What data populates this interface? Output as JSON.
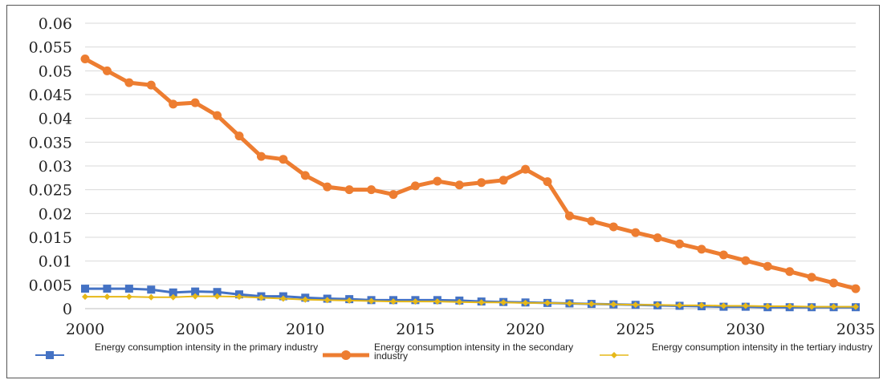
{
  "chart_data": {
    "type": "line",
    "title": "",
    "xlabel": "",
    "ylabel": "",
    "x": [
      2000,
      2001,
      2002,
      2003,
      2004,
      2005,
      2006,
      2007,
      2008,
      2009,
      2010,
      2011,
      2012,
      2013,
      2014,
      2015,
      2016,
      2017,
      2018,
      2019,
      2020,
      2021,
      2022,
      2023,
      2024,
      2025,
      2026,
      2027,
      2028,
      2029,
      2030,
      2031,
      2032,
      2033,
      2034,
      2035
    ],
    "xlim": [
      2000,
      2035
    ],
    "ylim": [
      0,
      0.06
    ],
    "x_ticks": [
      "2000",
      "2005",
      "2010",
      "2015",
      "2020",
      "2025",
      "2030",
      "2035"
    ],
    "y_ticks": [
      "0",
      "0.005",
      "0.01",
      "0.015",
      "0.02",
      "0.025",
      "0.03",
      "0.035",
      "0.04",
      "0.045",
      "0.05",
      "0.055",
      "0.06"
    ],
    "grid": "horizontal",
    "legend_position": "bottom",
    "series": [
      {
        "name": "Energy consumption intensity in the primary industry",
        "color": "#4472c4",
        "marker": "square",
        "values": [
          0.0042,
          0.0042,
          0.0042,
          0.004,
          0.0034,
          0.0036,
          0.0035,
          0.003,
          0.0026,
          0.0026,
          0.0023,
          0.0021,
          0.002,
          0.0018,
          0.0018,
          0.0018,
          0.0018,
          0.0017,
          0.0015,
          0.0014,
          0.0013,
          0.0012,
          0.0011,
          0.001,
          0.0009,
          0.0008,
          0.0007,
          0.0006,
          0.0005,
          0.0004,
          0.0004,
          0.0003,
          0.0003,
          0.0003,
          0.0003,
          0.0003
        ]
      },
      {
        "name": "Energy consumption intensity in the secondary industry",
        "color": "#ed7d31",
        "marker": "circle",
        "values": [
          0.0525,
          0.05,
          0.0475,
          0.047,
          0.043,
          0.0433,
          0.0406,
          0.0363,
          0.032,
          0.0314,
          0.028,
          0.0256,
          0.025,
          0.025,
          0.024,
          0.0258,
          0.0268,
          0.026,
          0.0265,
          0.027,
          0.0293,
          0.0267,
          0.0195,
          0.0184,
          0.0172,
          0.016,
          0.0149,
          0.0136,
          0.0125,
          0.0113,
          0.0101,
          0.0089,
          0.0078,
          0.0066,
          0.0054,
          0.0042
        ]
      },
      {
        "name": "Energy consumption intensity in the tertiary industry",
        "color": "#e6b818",
        "marker": "cross",
        "values": [
          0.0025,
          0.0025,
          0.0025,
          0.0024,
          0.0024,
          0.0026,
          0.0026,
          0.0025,
          0.0023,
          0.0021,
          0.0019,
          0.0018,
          0.0017,
          0.0016,
          0.0015,
          0.0015,
          0.0015,
          0.0014,
          0.0013,
          0.0013,
          0.0012,
          0.0012,
          0.0011,
          0.001,
          0.0009,
          0.0008,
          0.0008,
          0.0007,
          0.0007,
          0.0006,
          0.0006,
          0.0005,
          0.0005,
          0.0004,
          0.0004,
          0.0004
        ]
      }
    ]
  }
}
